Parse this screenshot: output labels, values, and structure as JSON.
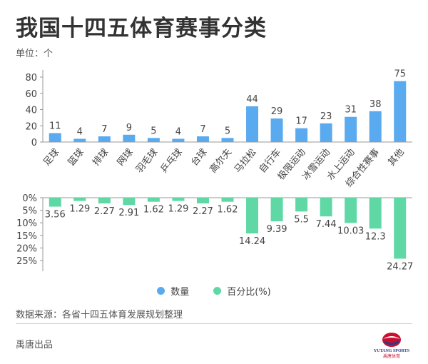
{
  "title": "我国十四五体育赛事分类",
  "unit_label": "单位：个",
  "legend": [
    {
      "label": "数量",
      "color": "#5aaaf0"
    },
    {
      "label": "百分比(%)",
      "color": "#5fd8a6"
    }
  ],
  "source": "数据来源：各省十四五体育发展规划整理",
  "footer": {
    "left_text": "禹唐出品",
    "logo_name": "YUTANG SPORTS",
    "logo_cn": "禹唐体育"
  },
  "chart_data": [
    {
      "type": "bar",
      "title": "",
      "xlabel": "",
      "ylabel": "",
      "categories": [
        "足球",
        "篮球",
        "排球",
        "网球",
        "羽毛球",
        "乒乓球",
        "台球",
        "高尔夫",
        "马拉松",
        "自行车",
        "极限运动",
        "冰雪运动",
        "水上运动",
        "综合性赛事",
        "其他"
      ],
      "series": [
        {
          "name": "数量",
          "values": [
            11,
            4,
            7,
            9,
            5,
            4,
            7,
            5,
            44,
            29,
            17,
            23,
            31,
            38,
            75
          ]
        }
      ],
      "highlight_from_index": 8,
      "colors": {
        "normal": "#5aaaf0",
        "highlight": "#5aaaf0"
      },
      "ylim": [
        0,
        80
      ],
      "yticks": [
        0,
        20,
        40,
        60,
        80
      ]
    },
    {
      "type": "bar",
      "title": "",
      "xlabel": "",
      "ylabel": "",
      "categories": [
        "足球",
        "篮球",
        "排球",
        "网球",
        "羽毛球",
        "乒乓球",
        "台球",
        "高尔夫",
        "马拉松",
        "自行车",
        "极限运动",
        "冰雪运动",
        "水上运动",
        "综合性赛事",
        "其他"
      ],
      "series": [
        {
          "name": "百分比(%)",
          "values": [
            3.56,
            1.29,
            2.27,
            2.91,
            1.62,
            1.29,
            2.27,
            1.62,
            14.24,
            9.39,
            5.5,
            7.44,
            10.03,
            12.3,
            24.27
          ]
        }
      ],
      "inverted": true,
      "color": "#5fd8a6",
      "ylim": [
        0,
        25
      ],
      "yticks": [
        "0%",
        "5%",
        "10%",
        "15%",
        "20%",
        "25%"
      ],
      "ytick_values": [
        0,
        5,
        10,
        15,
        20,
        25
      ]
    }
  ]
}
